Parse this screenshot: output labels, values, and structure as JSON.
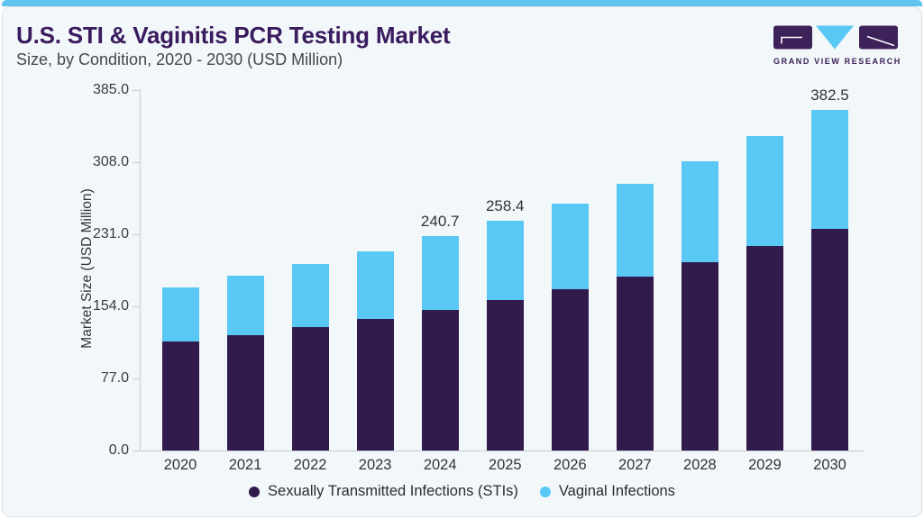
{
  "page": {
    "title": "U.S. STI & Vaginitis PCR Testing Market",
    "subtitle": "Size, by Condition, 2020 - 2030 (USD Million)",
    "logo_text": "GRAND VIEW RESEARCH"
  },
  "colors": {
    "sti_bar": "#311b4c",
    "vaginal_bar": "#5ac8f5",
    "accent_strip": "#5ec4ef",
    "title_text": "#3a1b5e",
    "card_background": "#f2f7fa",
    "axis_gray": "#c5cbd3"
  },
  "chart_data": {
    "type": "bar",
    "stacked": true,
    "title": "U.S. STI & Vaginitis PCR Testing Market Size, by Condition, 2020 - 2030 (USD Million)",
    "categories": [
      "2020",
      "2021",
      "2022",
      "2023",
      "2024",
      "2025",
      "2026",
      "2027",
      "2028",
      "2029",
      "2030"
    ],
    "series": [
      {
        "name": "Sexually Transmitted Infections (STIs)",
        "color": "#311b4c",
        "values": [
          122.3,
          129.9,
          138.4,
          147.5,
          157.9,
          168.7,
          181.5,
          195.6,
          211.8,
          230.1,
          249.0
        ]
      },
      {
        "name": "Vaginal Infections",
        "color": "#5ac8f5",
        "values": [
          60.6,
          66.5,
          71.4,
          75.9,
          82.8,
          89.7,
          95.8,
          104.0,
          112.8,
          123.1,
          133.5
        ]
      }
    ],
    "totals": [
      182.9,
      196.4,
      209.8,
      223.4,
      240.7,
      258.4,
      277.3,
      299.6,
      324.6,
      353.2,
      382.5
    ],
    "bar_labels": [
      "",
      "",
      "",
      "",
      "240.7",
      "258.4",
      "",
      "",
      "",
      "",
      "382.5"
    ],
    "ylabel": "Market Size (USD Million)",
    "yticks": [
      0.0,
      77.0,
      154.0,
      231.0,
      308.0,
      385.0
    ],
    "ytick_labels": [
      "0.0",
      "77.0",
      "154.0",
      "231.0",
      "308.0",
      "385.0"
    ],
    "ylim": [
      0,
      385
    ],
    "xlabel": "",
    "grid": false,
    "legend_position": "bottom"
  }
}
